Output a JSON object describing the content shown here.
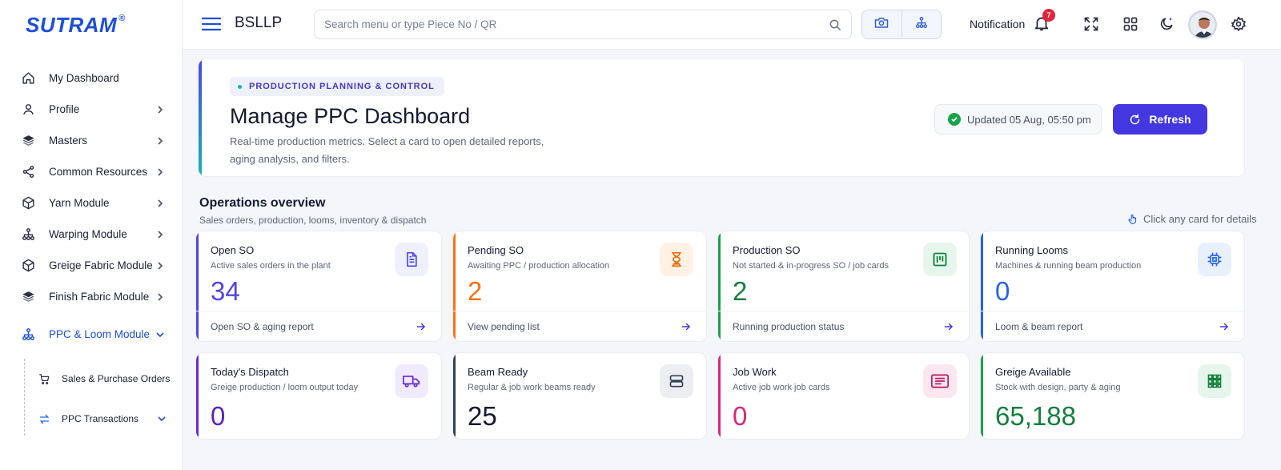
{
  "brand": {
    "name": "SUTRAM",
    "mark": "®"
  },
  "sidebar": {
    "items": [
      {
        "label": "My Dashboard",
        "icon": "home-icon",
        "has_chevron": false
      },
      {
        "label": "Profile",
        "icon": "user-icon",
        "has_chevron": true
      },
      {
        "label": "Masters",
        "icon": "layers-icon",
        "has_chevron": true
      },
      {
        "label": "Common Resources",
        "icon": "share-icon",
        "has_chevron": true
      },
      {
        "label": "Yarn Module",
        "icon": "box-icon",
        "has_chevron": true
      },
      {
        "label": "Warping Module",
        "icon": "hierarchy-icon",
        "has_chevron": true
      },
      {
        "label": "Greige Fabric Module",
        "icon": "box-icon",
        "has_chevron": true
      },
      {
        "label": "Finish Fabric Module",
        "icon": "layers-icon",
        "has_chevron": true
      },
      {
        "label": "PPC & Loom Module",
        "icon": "hierarchy-icon",
        "has_chevron": true,
        "active": true
      }
    ],
    "sub_items": [
      {
        "label": "Sales & Purchase Orders",
        "icon": "cart-icon"
      },
      {
        "label": "PPC Transactions",
        "icon": "transfer-icon"
      }
    ]
  },
  "header": {
    "org": "BSLLP",
    "search_placeholder": "Search menu or type Piece No / QR",
    "notification_label": "Notification",
    "notification_count": "7"
  },
  "banner": {
    "tag": "PRODUCTION PLANNING & CONTROL",
    "title": "Manage PPC Dashboard",
    "description": "Real-time production metrics. Select a card to open detailed reports, aging analysis, and filters.",
    "updated": "Updated 05 Aug, 05:50 pm",
    "refresh_label": "Refresh"
  },
  "overview": {
    "title": "Operations overview",
    "subtitle": "Sales orders, production, looms, inventory & dispatch",
    "hint": "Click any card for details"
  },
  "cards": [
    {
      "title": "Open SO",
      "subtitle": "Active sales orders in the plant",
      "value": "34",
      "footer": "Open SO & aging report",
      "accent": "#4f46e5",
      "value_color": "#4f46e5",
      "icon": "document-icon",
      "icon_bg": "#eef0fb",
      "icon_color": "#4f46e5"
    },
    {
      "title": "Pending SO",
      "subtitle": "Awaiting PPC / production allocation",
      "value": "2",
      "footer": "View pending list",
      "accent": "#f97316",
      "value_color": "#f97316",
      "icon": "hourglass-icon",
      "icon_bg": "#fff1e4",
      "icon_color": "#ea6c0a"
    },
    {
      "title": "Production SO",
      "subtitle": "Not started & in-progress SO / job cards",
      "value": "2",
      "footer": "Running production status",
      "accent": "#16a34a",
      "value_color": "#15803d",
      "icon": "kanban-icon",
      "icon_bg": "#e6f6ec",
      "icon_color": "#15803d"
    },
    {
      "title": "Running Looms",
      "subtitle": "Machines & running beam production",
      "value": "0",
      "footer": "Loom & beam report",
      "accent": "#2563eb",
      "value_color": "#2563eb",
      "icon": "chip-icon",
      "icon_bg": "#e8f0fd",
      "icon_color": "#2563eb"
    },
    {
      "title": "Today's Dispatch",
      "subtitle": "Greige production / loom output today",
      "value": "0",
      "accent": "#6d28d9",
      "value_color": "#5b21b6",
      "icon": "truck-icon",
      "icon_bg": "#f0ebfc",
      "icon_color": "#6d28d9"
    },
    {
      "title": "Beam Ready",
      "subtitle": "Regular & job work beams ready",
      "value": "25",
      "accent": "#334155",
      "value_color": "#141a33",
      "icon": "beam-icon",
      "icon_bg": "#eceef2",
      "icon_color": "#334155"
    },
    {
      "title": "Job Work",
      "subtitle": "Active job work job cards",
      "value": "0",
      "accent": "#db2777",
      "value_color": "#db2777",
      "icon": "list-card-icon",
      "icon_bg": "#fce7f1",
      "icon_color": "#be185d"
    },
    {
      "title": "Greige Available",
      "subtitle": "Stock with design, party & aging",
      "value": "65,188",
      "accent": "#16a34a",
      "value_color": "#15803d",
      "icon": "grid-icon",
      "icon_bg": "#e6f6ec",
      "icon_color": "#15803d"
    }
  ]
}
